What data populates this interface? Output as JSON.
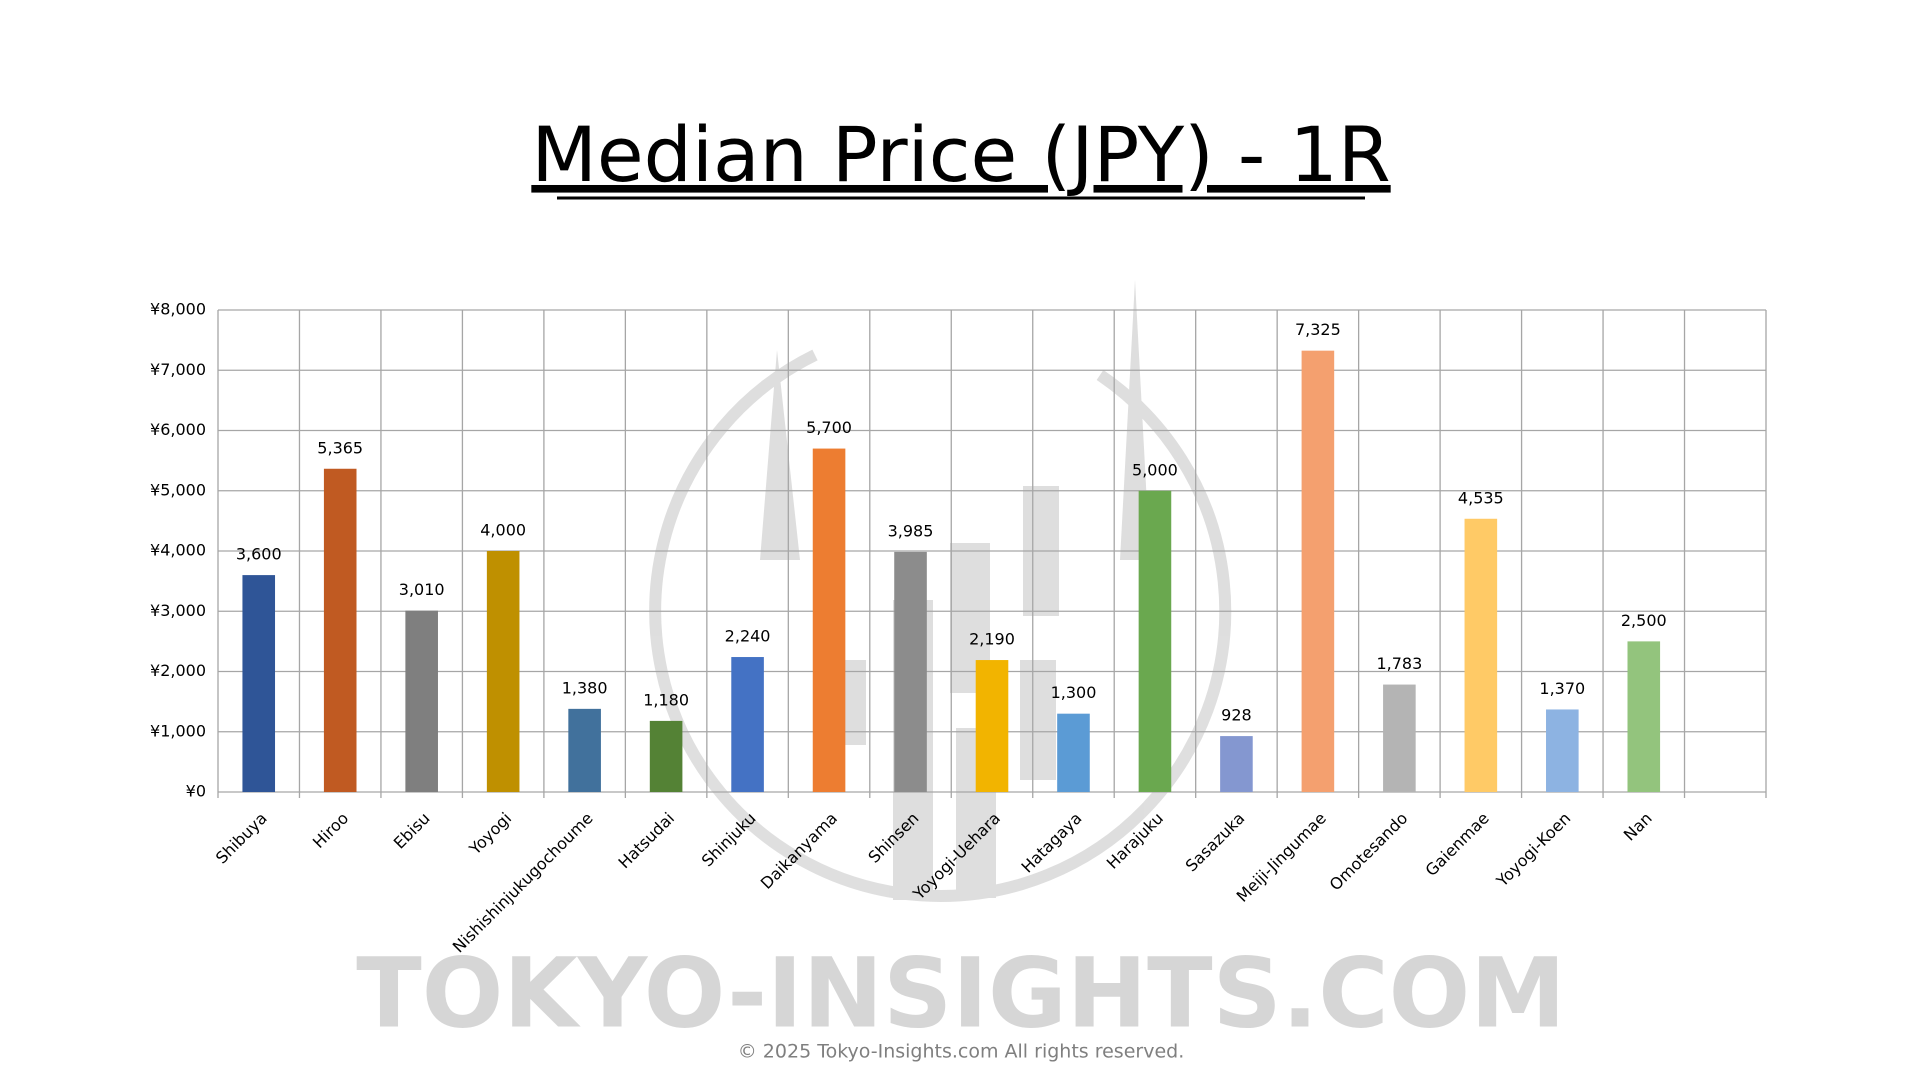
{
  "chart_data": {
    "type": "bar",
    "title": "Median Price (JPY) - 1R",
    "categories": [
      "Shibuya",
      "Hiroo",
      "Ebisu",
      "Yoyogi",
      "Nishishinjukugochoume",
      "Hatsudai",
      "Shinjuku",
      "Daikanyama",
      "Shinsen",
      "Yoyogi-Uehara",
      "Hatagaya",
      "Harajuku",
      "Sasazuka",
      "Meiji-Jingumae",
      "Omotesando",
      "Gaienmae",
      "Yoyogi-Koen",
      "Nan",
      null
    ],
    "values": [
      3600,
      5365,
      3010,
      4000,
      1380,
      1180,
      2240,
      5700,
      3985,
      2190,
      1300,
      5000,
      928,
      7325,
      1783,
      4535,
      1370,
      2500,
      null
    ],
    "value_labels": [
      "3,600",
      "5,365",
      "3,010",
      "4,000",
      "1,380",
      "1,180",
      "2,240",
      "5,700",
      "3,985",
      "2,190",
      "1,300",
      "5,000",
      "928",
      "7,325",
      "1,783",
      "4,535",
      "1,370",
      "2,500",
      null
    ],
    "colors": [
      "#2f5597",
      "#c05a22",
      "#7f7f7f",
      "#bf9000",
      "#41719c",
      "#548235",
      "#4472c4",
      "#ed7d31",
      "#8c8c8c",
      "#f2b400",
      "#5b9bd5",
      "#6aa84f",
      "#8497d0",
      "#f4a06f",
      "#b4b4b4",
      "#ffca66",
      "#8db3e2",
      "#93c47d",
      null
    ],
    "ylim": [
      0,
      8000
    ],
    "yticks": [
      {
        "value": 0,
        "label": "¥0"
      },
      {
        "value": 1000,
        "label": "¥1,000"
      },
      {
        "value": 2000,
        "label": "¥2,000"
      },
      {
        "value": 3000,
        "label": "¥3,000"
      },
      {
        "value": 4000,
        "label": "¥4,000"
      },
      {
        "value": 5000,
        "label": "¥5,000"
      },
      {
        "value": 6000,
        "label": "¥6,000"
      },
      {
        "value": 7000,
        "label": "¥7,000"
      },
      {
        "value": 8000,
        "label": "¥8,000"
      }
    ],
    "grid": true
  },
  "watermark": "TOKYO-INSIGHTS.COM",
  "copyright": "© 2025 Tokyo-Insights.com All rights reserved."
}
